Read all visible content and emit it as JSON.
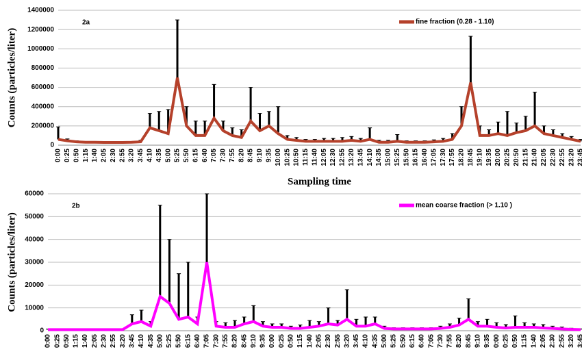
{
  "chart_data": [
    {
      "type": "line",
      "annotation": "2a",
      "ylabel": "Counts (particles/liter)",
      "xlabel": "Sampling time",
      "categories": [
        "0:00",
        "0:25",
        "0:50",
        "1:15",
        "1:40",
        "2:05",
        "2:30",
        "2:55",
        "3:20",
        "3:45",
        "4:10",
        "4:35",
        "5:00",
        "5:25",
        "5:50",
        "6:15",
        "6:40",
        "7:05",
        "7:30",
        "7:55",
        "8:20",
        "8:45",
        "9:10",
        "9:35",
        "10:00",
        "10:25",
        "10:50",
        "11:15",
        "11:40",
        "12:05",
        "12:30",
        "12:55",
        "13:20",
        "13:45",
        "14:10",
        "14:35",
        "15:00",
        "15:25",
        "15:50",
        "16:15",
        "16:40",
        "17:05",
        "17:30",
        "17:55",
        "18:20",
        "18:45",
        "19:10",
        "19:35",
        "20:00",
        "20:25",
        "20:50",
        "21:15",
        "21:40",
        "22:05",
        "22:30",
        "22:55",
        "23:20",
        "23:45"
      ],
      "series": [
        {
          "name": "fine fraction (0.28 - 1.10)",
          "color": "#b5412b",
          "error_color": "#000000",
          "values": [
            60000,
            45000,
            35000,
            30000,
            30000,
            28000,
            28000,
            28000,
            30000,
            35000,
            180000,
            150000,
            120000,
            700000,
            200000,
            100000,
            100000,
            280000,
            150000,
            100000,
            80000,
            250000,
            150000,
            200000,
            120000,
            60000,
            50000,
            40000,
            40000,
            40000,
            40000,
            40000,
            50000,
            40000,
            60000,
            30000,
            30000,
            40000,
            30000,
            30000,
            30000,
            35000,
            40000,
            60000,
            200000,
            650000,
            100000,
            100000,
            120000,
            100000,
            130000,
            150000,
            200000,
            120000,
            100000,
            80000,
            60000,
            40000
          ],
          "errors": [
            130000,
            20000,
            10000,
            8000,
            8000,
            8000,
            8000,
            8000,
            8000,
            15000,
            150000,
            200000,
            250000,
            600000,
            200000,
            150000,
            150000,
            350000,
            100000,
            80000,
            80000,
            350000,
            180000,
            150000,
            280000,
            40000,
            30000,
            20000,
            20000,
            30000,
            30000,
            40000,
            40000,
            30000,
            120000,
            20000,
            20000,
            70000,
            15000,
            15000,
            15000,
            20000,
            30000,
            60000,
            200000,
            480000,
            100000,
            60000,
            120000,
            250000,
            100000,
            150000,
            350000,
            80000,
            60000,
            40000,
            30000,
            20000
          ]
        }
      ],
      "ylim": [
        0,
        1400000
      ],
      "yticks": [
        0,
        200000,
        400000,
        600000,
        800000,
        1000000,
        1200000,
        1400000
      ],
      "grid": true,
      "legend": "upper right"
    },
    {
      "type": "line",
      "annotation": "2b",
      "ylabel": "Counts (particles/liter)",
      "categories": [
        "0:00",
        "0:25",
        "0:50",
        "1:15",
        "1:40",
        "2:05",
        "2:30",
        "2:55",
        "3:20",
        "3:45",
        "4:10",
        "4:35",
        "5:00",
        "5:25",
        "5:50",
        "6:15",
        "6:40",
        "7:05",
        "7:30",
        "7:55",
        "8:20",
        "8:45",
        "9:10",
        "9:35",
        "0:00",
        "0:25",
        "0:50",
        "1:15",
        "1:40",
        "2:05",
        "2:30",
        "2:55",
        "3:20",
        "3:45",
        "4:10",
        "4:35",
        "5:00",
        "5:25",
        "5:50",
        "6:15",
        "6:40",
        "7:05",
        "7:30",
        "7:55",
        "8:20",
        "8:45",
        "9:10",
        "9:35",
        "0:00",
        "0:25",
        "0:50",
        "1:15",
        "1:40",
        "2:05",
        "2:30",
        "2:55",
        "3:20",
        "3:45"
      ],
      "series": [
        {
          "name": "mean coarse fraction (> 1.10 )",
          "color": "#ff00ff",
          "error_color": "#000000",
          "values": [
            500,
            500,
            500,
            500,
            500,
            500,
            500,
            500,
            500,
            3000,
            4000,
            2000,
            15000,
            12000,
            5000,
            6000,
            3000,
            30000,
            2000,
            1500,
            1500,
            3000,
            4000,
            2000,
            1500,
            1500,
            1000,
            1000,
            1500,
            2000,
            3000,
            2500,
            5000,
            2000,
            2000,
            3000,
            1000,
            800,
            800,
            800,
            800,
            800,
            1000,
            1500,
            2500,
            5000,
            2000,
            2000,
            1500,
            1200,
            1500,
            1500,
            1500,
            1200,
            1000,
            800,
            600,
            500
          ],
          "errors": [
            200,
            200,
            200,
            200,
            200,
            200,
            200,
            200,
            200,
            4000,
            5000,
            2000,
            40000,
            28000,
            20000,
            24000,
            3000,
            30000,
            2000,
            2000,
            3000,
            3000,
            7000,
            2000,
            1500,
            1500,
            1000,
            1500,
            3000,
            2000,
            7000,
            2000,
            13000,
            3000,
            4000,
            3000,
            1000,
            500,
            500,
            500,
            500,
            500,
            1000,
            1500,
            3000,
            9000,
            2000,
            3000,
            2000,
            1500,
            5000,
            2000,
            1500,
            1500,
            1000,
            800,
            500,
            300
          ]
        }
      ],
      "ylim": [
        0,
        60000
      ],
      "yticks": [
        0,
        10000,
        20000,
        30000,
        40000,
        50000,
        60000
      ],
      "grid": true,
      "legend": "upper right"
    }
  ]
}
